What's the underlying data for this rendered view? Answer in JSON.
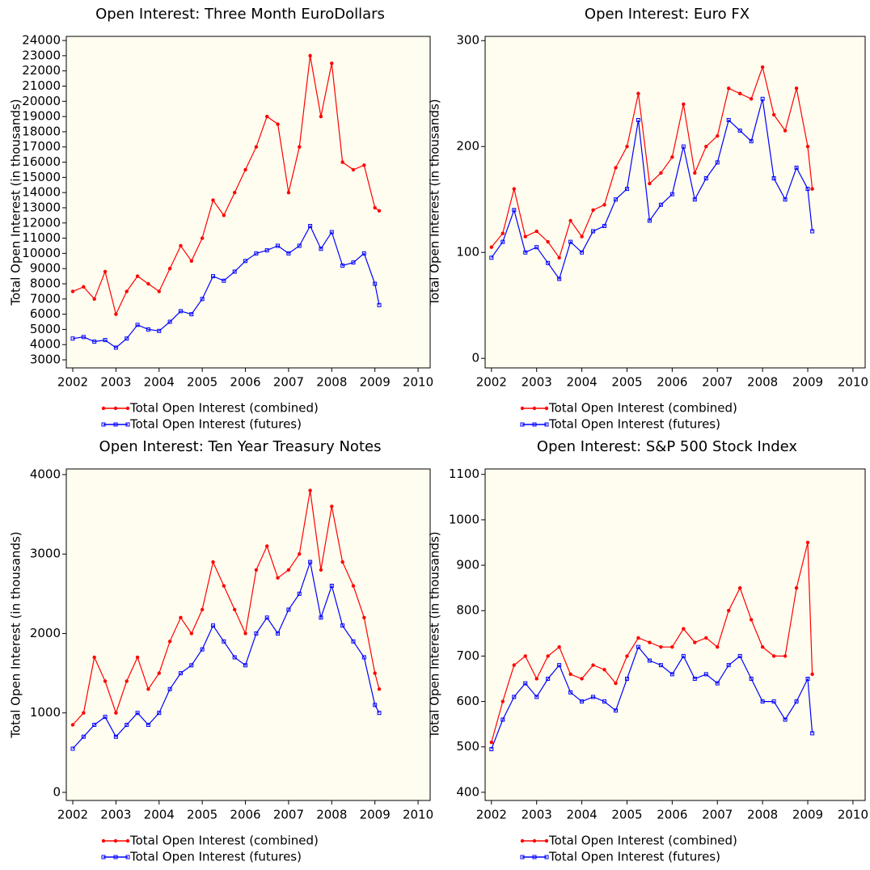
{
  "chart_data": [
    {
      "type": "line",
      "title": "Open Interest: Three Month EuroDollars",
      "y_label": "Total Open Interest (in thousands)",
      "x": [
        2002,
        2002.25,
        2002.5,
        2002.75,
        2003,
        2003.25,
        2003.5,
        2003.75,
        2004,
        2004.25,
        2004.5,
        2004.75,
        2005,
        2005.25,
        2005.5,
        2005.75,
        2006,
        2006.25,
        2006.5,
        2006.75,
        2007,
        2007.25,
        2007.5,
        2007.75,
        2008,
        2008.25,
        2008.5,
        2008.75,
        2009,
        2009.1
      ],
      "series": [
        {
          "name": "Total Open Interest (combined)",
          "color": "#ff0000",
          "marker": "circle",
          "values": [
            7500,
            7800,
            7000,
            8800,
            6000,
            7500,
            8500,
            8000,
            7500,
            9000,
            10500,
            9500,
            11000,
            13500,
            12500,
            14000,
            15500,
            17000,
            19000,
            18500,
            14000,
            17000,
            23000,
            19000,
            22500,
            16000,
            15500,
            15800,
            13000,
            12800
          ]
        },
        {
          "name": "Total Open Interest (futures)",
          "color": "#0000ff",
          "marker": "square",
          "values": [
            4400,
            4500,
            4200,
            4300,
            3800,
            4400,
            5300,
            5000,
            4900,
            5500,
            6200,
            6000,
            7000,
            8500,
            8200,
            8800,
            9500,
            10000,
            10200,
            10500,
            10000,
            10500,
            11800,
            10300,
            11400,
            9200,
            9400,
            10000,
            8000,
            6600
          ]
        }
      ],
      "xlim": [
        2001.85,
        2010.28
      ],
      "xticks": [
        2002,
        2003,
        2004,
        2005,
        2006,
        2007,
        2008,
        2009,
        2010
      ],
      "ylim": [
        2470,
        24270
      ],
      "yticks": [
        3000,
        4000,
        5000,
        6000,
        7000,
        8000,
        9000,
        10000,
        11000,
        12000,
        13000,
        14000,
        15000,
        16000,
        17000,
        18000,
        19000,
        20000,
        21000,
        22000,
        23000,
        24000
      ]
    },
    {
      "type": "line",
      "title": "Open Interest: Euro FX",
      "y_label": "Total Open Interest (in thousands)",
      "x": [
        2002,
        2002.25,
        2002.5,
        2002.75,
        2003,
        2003.25,
        2003.5,
        2003.75,
        2004,
        2004.25,
        2004.5,
        2004.75,
        2005,
        2005.25,
        2005.5,
        2005.75,
        2006,
        2006.25,
        2006.5,
        2006.75,
        2007,
        2007.25,
        2007.5,
        2007.75,
        2008,
        2008.25,
        2008.5,
        2008.75,
        2009,
        2009.1
      ],
      "series": [
        {
          "name": "Total Open Interest (combined)",
          "color": "#ff0000",
          "marker": "circle",
          "values": [
            105,
            118,
            160,
            115,
            120,
            110,
            95,
            130,
            115,
            140,
            145,
            180,
            200,
            250,
            165,
            175,
            190,
            240,
            175,
            200,
            210,
            255,
            250,
            245,
            275,
            230,
            215,
            255,
            200,
            160
          ]
        },
        {
          "name": "Total Open Interest (futures)",
          "color": "#0000ff",
          "marker": "square",
          "values": [
            95,
            110,
            140,
            100,
            105,
            90,
            75,
            110,
            100,
            120,
            125,
            150,
            160,
            225,
            130,
            145,
            155,
            200,
            150,
            170,
            185,
            225,
            215,
            205,
            245,
            170,
            150,
            180,
            160,
            120
          ]
        }
      ],
      "xlim": [
        2001.86,
        2010.27
      ],
      "xticks": [
        2002,
        2003,
        2004,
        2005,
        2006,
        2007,
        2008,
        2009,
        2010
      ],
      "ylim": [
        -9,
        304
      ],
      "yticks": [
        0,
        100,
        200,
        300
      ]
    },
    {
      "type": "line",
      "title": "Open Interest: Ten Year Treasury Notes",
      "y_label": "Total Open Interest (in thousands)",
      "x": [
        2002,
        2002.25,
        2002.5,
        2002.75,
        2003,
        2003.25,
        2003.5,
        2003.75,
        2004,
        2004.25,
        2004.5,
        2004.75,
        2005,
        2005.25,
        2005.5,
        2005.75,
        2006,
        2006.25,
        2006.5,
        2006.75,
        2007,
        2007.25,
        2007.5,
        2007.75,
        2008,
        2008.25,
        2008.5,
        2008.75,
        2009,
        2009.1
      ],
      "series": [
        {
          "name": "Total Open Interest (combined)",
          "color": "#ff0000",
          "marker": "circle",
          "values": [
            850,
            1000,
            1700,
            1400,
            1000,
            1400,
            1700,
            1300,
            1500,
            1900,
            2200,
            2000,
            2300,
            2900,
            2600,
            2300,
            2000,
            2800,
            3100,
            2700,
            2800,
            3000,
            3800,
            2800,
            3600,
            2900,
            2600,
            2200,
            1500,
            1300
          ]
        },
        {
          "name": "Total Open Interest (futures)",
          "color": "#0000ff",
          "marker": "square",
          "values": [
            550,
            700,
            850,
            950,
            700,
            850,
            1000,
            850,
            1000,
            1300,
            1500,
            1600,
            1800,
            2100,
            1900,
            1700,
            1600,
            2000,
            2200,
            2000,
            2300,
            2500,
            2900,
            2200,
            2600,
            2100,
            1900,
            1700,
            1100,
            1000
          ]
        }
      ],
      "xlim": [
        2001.85,
        2010.28
      ],
      "xticks": [
        2002,
        2003,
        2004,
        2005,
        2006,
        2007,
        2008,
        2009,
        2010
      ],
      "ylim": [
        -102,
        4071
      ],
      "yticks": [
        0,
        1000,
        2000,
        3000,
        4000
      ]
    },
    {
      "type": "line",
      "title": "Open Interest: S&P 500 Stock Index",
      "y_label": "Total Open Interest (in thousands)",
      "x": [
        2002,
        2002.25,
        2002.5,
        2002.75,
        2003,
        2003.25,
        2003.5,
        2003.75,
        2004,
        2004.25,
        2004.5,
        2004.75,
        2005,
        2005.25,
        2005.5,
        2005.75,
        2006,
        2006.25,
        2006.5,
        2006.75,
        2007,
        2007.25,
        2007.5,
        2007.75,
        2008,
        2008.25,
        2008.5,
        2008.75,
        2009,
        2009.1
      ],
      "series": [
        {
          "name": "Total Open Interest (combined)",
          "color": "#ff0000",
          "marker": "circle",
          "values": [
            510,
            600,
            680,
            700,
            650,
            700,
            720,
            660,
            650,
            680,
            670,
            640,
            700,
            740,
            730,
            720,
            720,
            760,
            730,
            740,
            720,
            800,
            850,
            780,
            720,
            700,
            700,
            850,
            950,
            660
          ]
        },
        {
          "name": "Total Open Interest (futures)",
          "color": "#0000ff",
          "marker": "square",
          "values": [
            495,
            560,
            610,
            640,
            610,
            650,
            680,
            620,
            600,
            610,
            600,
            580,
            650,
            720,
            690,
            680,
            660,
            700,
            650,
            660,
            640,
            680,
            700,
            650,
            600,
            600,
            560,
            600,
            650,
            530
          ]
        }
      ],
      "xlim": [
        2001.86,
        2010.27
      ],
      "xticks": [
        2002,
        2003,
        2004,
        2005,
        2006,
        2007,
        2008,
        2009,
        2010
      ],
      "ylim": [
        382,
        1112
      ],
      "yticks": [
        400,
        500,
        600,
        700,
        800,
        900,
        1000,
        1100
      ]
    }
  ]
}
